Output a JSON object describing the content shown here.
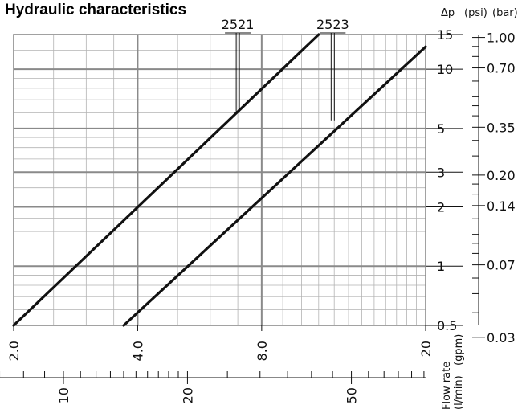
{
  "chart_data": {
    "type": "line",
    "title": "Hydraulic characteristics",
    "scale": "log-log",
    "grid": true,
    "x_axis": {
      "label": "Flow rate",
      "units": [
        "(gpm)",
        "(l/min)"
      ],
      "range_gpm": [
        2.0,
        20
      ],
      "ticks_gpm": [
        "2.0",
        "4.0",
        "8.0",
        "20"
      ],
      "ticks_lmin": [
        "10",
        "20",
        "50"
      ]
    },
    "y_axis": {
      "label": "Δp",
      "units": [
        "(psi)",
        "(bar)"
      ],
      "range_psi": [
        0.5,
        15
      ],
      "ticks_psi": [
        "0.5",
        "1",
        "2",
        "3",
        "5",
        "10",
        "15"
      ],
      "ticks_bar": [
        "0.03",
        "0.07",
        "0.14",
        "0.20",
        "0.35",
        "0.70",
        "1.00"
      ]
    },
    "series": [
      {
        "name": "2521",
        "points": [
          {
            "x": 2.0,
            "y": 0.5
          },
          {
            "x": 11.0,
            "y": 15
          }
        ],
        "label_at": {
          "x": 7.0,
          "y": 6.1
        }
      },
      {
        "name": "2523",
        "points": [
          {
            "x": 3.7,
            "y": 0.5
          },
          {
            "x": 20,
            "y": 13
          }
        ],
        "label_at": {
          "x": 11.9,
          "y": 5.5
        }
      }
    ]
  }
}
